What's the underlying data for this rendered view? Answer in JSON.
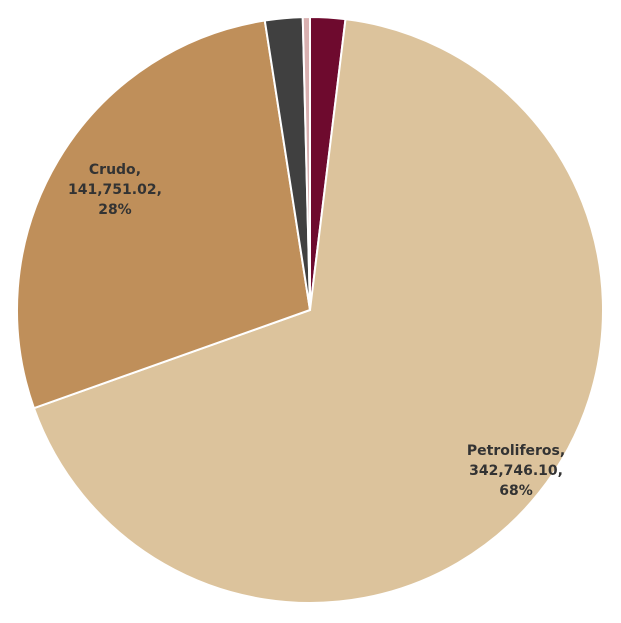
{
  "chart_data": {
    "type": "pie",
    "categories": [
      null,
      "Petroliferos",
      "Crudo",
      null,
      null
    ],
    "values": [
      9800,
      342746.1,
      141751.02,
      10500,
      2000
    ],
    "value_labels": [
      null,
      "342,746.10",
      "141,751.02",
      null,
      null
    ],
    "percent_labels": [
      null,
      "68%",
      "28%",
      null,
      null
    ],
    "label_separator": ",",
    "colors": [
      "#6e0a2e",
      "#dcc39c",
      "#bf8f5a",
      "#404040",
      "#d9b0b0"
    ],
    "start_angle": 0
  }
}
